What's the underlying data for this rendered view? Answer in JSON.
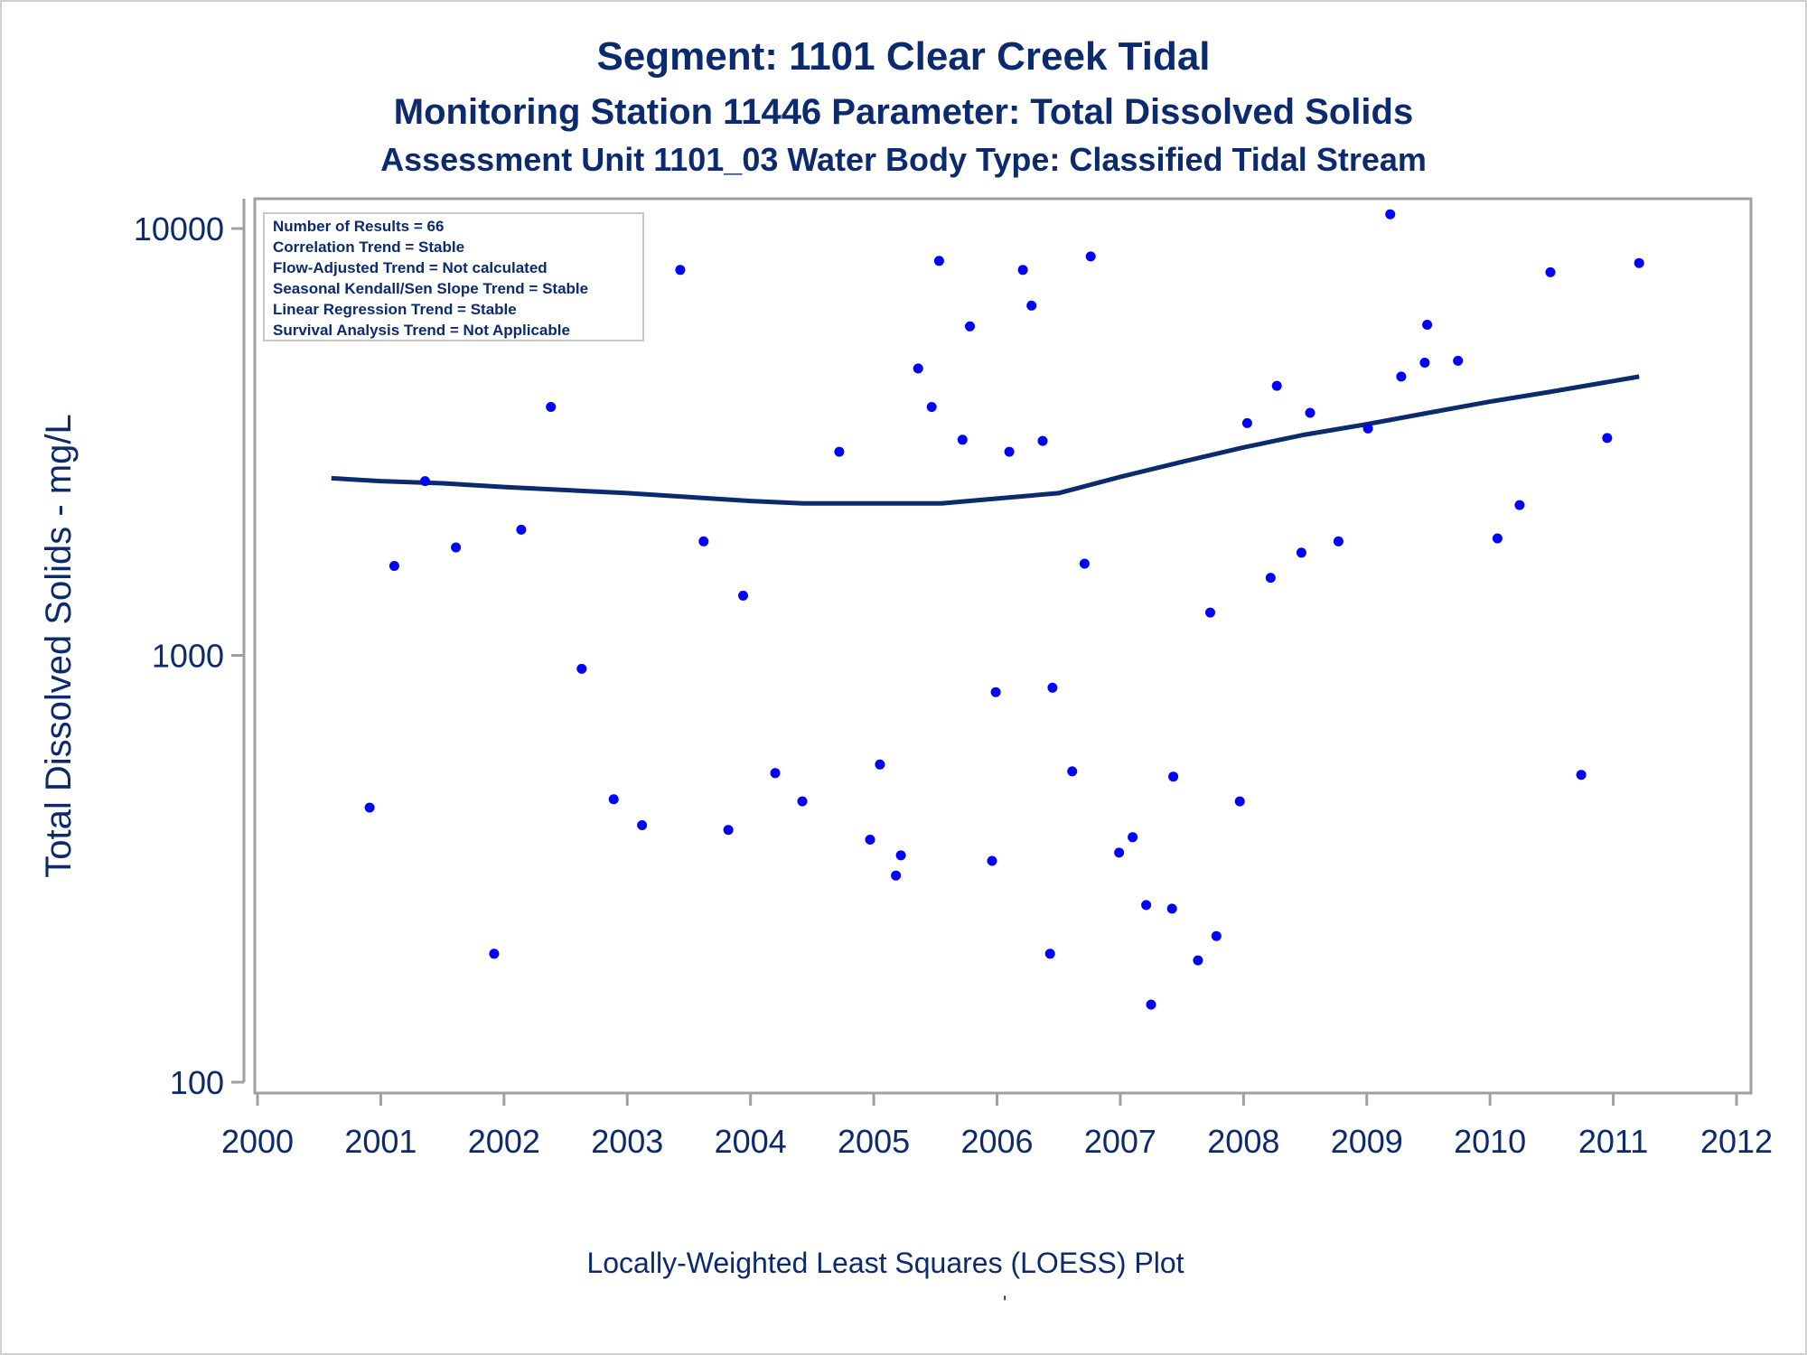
{
  "colors": {
    "title": "#0c2a6e",
    "axis_text": "#0c2a6e",
    "point": "#0000ff",
    "trend_line": "#0c2a6e",
    "frame": "#a0a0a0"
  },
  "chart_data": {
    "type": "scatter",
    "title": "Segment: 1101  Clear Creek Tidal",
    "subtitle": "Monitoring Station 11446 Parameter: Total Dissolved Solids",
    "subtitle2": "Assessment Unit 1101_03   Water Body Type: Classified Tidal Stream",
    "xlabel": "",
    "ylabel": "Total Dissolved Solids - mg/L",
    "footnote": "Locally-Weighted Least Squares (LOESS) Plot",
    "footnote_mark": "'",
    "y_scale": "log",
    "xlim": [
      2000,
      2012
    ],
    "ylim": [
      100,
      12000
    ],
    "x_ticks": [
      2000,
      2001,
      2002,
      2003,
      2004,
      2005,
      2006,
      2007,
      2008,
      2009,
      2010,
      2011,
      2012
    ],
    "x_tick_labels": [
      "2000",
      "2001",
      "2002",
      "2003",
      "2004",
      "2005",
      "2006",
      "2007",
      "2008",
      "2009",
      "2010",
      "2011",
      "2012"
    ],
    "y_ticks": [
      100,
      1000,
      10000
    ],
    "y_tick_labels": [
      "100",
      "1000",
      "10000"
    ],
    "grid": false,
    "legend_position": "top-left",
    "legend_lines": [
      "Number of Results = 66",
      "Correlation Trend = Stable",
      "Flow-Adjusted Trend = Not calculated",
      "Seasonal Kendall/Sen Slope Trend = Stable",
      "Linear Regression Trend = Stable",
      "Survival Analysis Trend = Not Applicable"
    ],
    "points": [
      {
        "x": 2000.6,
        "y": 9800
      },
      {
        "x": 2000.91,
        "y": 440
      },
      {
        "x": 2001.11,
        "y": 1620
      },
      {
        "x": 2001.36,
        "y": 2560
      },
      {
        "x": 2001.61,
        "y": 1790
      },
      {
        "x": 2001.92,
        "y": 200
      },
      {
        "x": 2002.14,
        "y": 1970
      },
      {
        "x": 2002.38,
        "y": 3820
      },
      {
        "x": 2002.63,
        "y": 930
      },
      {
        "x": 2002.89,
        "y": 460
      },
      {
        "x": 2003.12,
        "y": 400
      },
      {
        "x": 2003.43,
        "y": 8000
      },
      {
        "x": 2003.62,
        "y": 1850
      },
      {
        "x": 2003.82,
        "y": 390
      },
      {
        "x": 2003.94,
        "y": 1380
      },
      {
        "x": 2004.2,
        "y": 530
      },
      {
        "x": 2004.42,
        "y": 455
      },
      {
        "x": 2004.72,
        "y": 3000
      },
      {
        "x": 2004.97,
        "y": 370
      },
      {
        "x": 2005.05,
        "y": 555
      },
      {
        "x": 2005.18,
        "y": 305
      },
      {
        "x": 2005.22,
        "y": 340
      },
      {
        "x": 2005.36,
        "y": 4700
      },
      {
        "x": 2005.47,
        "y": 3820
      },
      {
        "x": 2005.53,
        "y": 8400
      },
      {
        "x": 2005.72,
        "y": 3200
      },
      {
        "x": 2005.78,
        "y": 5900
      },
      {
        "x": 2005.96,
        "y": 330
      },
      {
        "x": 2005.99,
        "y": 820
      },
      {
        "x": 2006.1,
        "y": 3000
      },
      {
        "x": 2006.21,
        "y": 8000
      },
      {
        "x": 2006.28,
        "y": 6600
      },
      {
        "x": 2006.37,
        "y": 3180
      },
      {
        "x": 2006.43,
        "y": 200
      },
      {
        "x": 2006.45,
        "y": 840
      },
      {
        "x": 2006.61,
        "y": 535
      },
      {
        "x": 2006.71,
        "y": 1640
      },
      {
        "x": 2006.76,
        "y": 8600
      },
      {
        "x": 2006.99,
        "y": 345
      },
      {
        "x": 2007.1,
        "y": 375
      },
      {
        "x": 2007.21,
        "y": 260
      },
      {
        "x": 2007.25,
        "y": 152
      },
      {
        "x": 2007.42,
        "y": 255
      },
      {
        "x": 2007.43,
        "y": 520
      },
      {
        "x": 2007.63,
        "y": 193
      },
      {
        "x": 2007.73,
        "y": 1260
      },
      {
        "x": 2007.78,
        "y": 220
      },
      {
        "x": 2007.97,
        "y": 455
      },
      {
        "x": 2008.03,
        "y": 3500
      },
      {
        "x": 2008.22,
        "y": 1520
      },
      {
        "x": 2008.27,
        "y": 4280
      },
      {
        "x": 2008.47,
        "y": 1740
      },
      {
        "x": 2008.54,
        "y": 3700
      },
      {
        "x": 2008.77,
        "y": 1850
      },
      {
        "x": 2009.01,
        "y": 3400
      },
      {
        "x": 2009.19,
        "y": 10800
      },
      {
        "x": 2009.28,
        "y": 4500
      },
      {
        "x": 2009.47,
        "y": 4850
      },
      {
        "x": 2009.49,
        "y": 5950
      },
      {
        "x": 2009.74,
        "y": 4900
      },
      {
        "x": 2010.06,
        "y": 1880
      },
      {
        "x": 2010.24,
        "y": 2250
      },
      {
        "x": 2010.49,
        "y": 7900
      },
      {
        "x": 2010.74,
        "y": 525
      },
      {
        "x": 2010.95,
        "y": 3230
      },
      {
        "x": 2011.21,
        "y": 8300
      }
    ],
    "series": [
      {
        "type": "line",
        "points": [
          {
            "x": 2000.6,
            "y": 2600
          },
          {
            "x": 2001.0,
            "y": 2560
          },
          {
            "x": 2001.5,
            "y": 2530
          },
          {
            "x": 2002.0,
            "y": 2480
          },
          {
            "x": 2002.5,
            "y": 2440
          },
          {
            "x": 2003.0,
            "y": 2400
          },
          {
            "x": 2003.5,
            "y": 2350
          },
          {
            "x": 2004.0,
            "y": 2300
          },
          {
            "x": 2004.43,
            "y": 2270
          },
          {
            "x": 2005.0,
            "y": 2270
          },
          {
            "x": 2005.55,
            "y": 2270
          },
          {
            "x": 2006.0,
            "y": 2330
          },
          {
            "x": 2006.5,
            "y": 2400
          },
          {
            "x": 2007.0,
            "y": 2620
          },
          {
            "x": 2007.5,
            "y": 2840
          },
          {
            "x": 2008.0,
            "y": 3070
          },
          {
            "x": 2008.5,
            "y": 3290
          },
          {
            "x": 2009.0,
            "y": 3480
          },
          {
            "x": 2009.5,
            "y": 3700
          },
          {
            "x": 2010.0,
            "y": 3930
          },
          {
            "x": 2010.5,
            "y": 4150
          },
          {
            "x": 2011.21,
            "y": 4500
          }
        ]
      }
    ]
  }
}
